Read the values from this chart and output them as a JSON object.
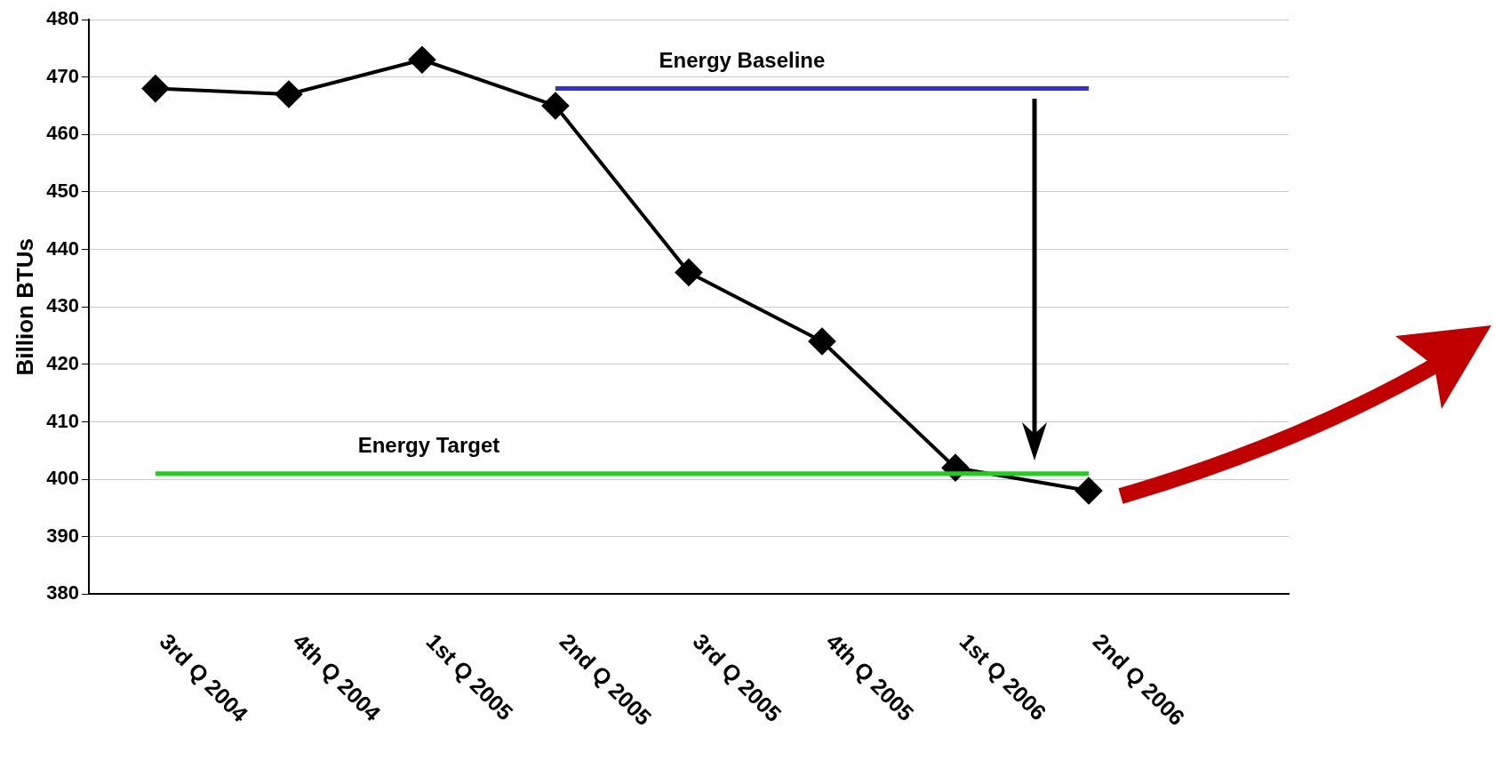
{
  "chart_data": {
    "type": "line",
    "ylabel": "Billion BTUs",
    "categories": [
      "3rd Q 2004",
      "4th Q 2004",
      "1st Q 2005",
      "2nd Q 2005",
      "3rd Q 2005",
      "4th Q 2005",
      "1st Q 2006",
      "2nd Q 2006",
      null
    ],
    "series": [
      {
        "name": "Energy Baseline",
        "color": "#3333cc",
        "marker": "none",
        "values": [
          null,
          null,
          null,
          468,
          468,
          468,
          468,
          468,
          null
        ]
      },
      {
        "name": "Energy Target",
        "color": "#22cc22",
        "marker": "none",
        "values": [
          401,
          401,
          401,
          401,
          401,
          401,
          401,
          401,
          null
        ]
      },
      {
        "color": "#000000",
        "marker": "diamond",
        "values": [
          468,
          467,
          473,
          465,
          436,
          424,
          402,
          398,
          null
        ]
      }
    ],
    "ylim": [
      380,
      480
    ],
    "yticks": [
      380,
      390,
      400,
      410,
      420,
      430,
      440,
      450,
      460,
      470,
      480
    ],
    "grid": "y",
    "legend": false
  }
}
